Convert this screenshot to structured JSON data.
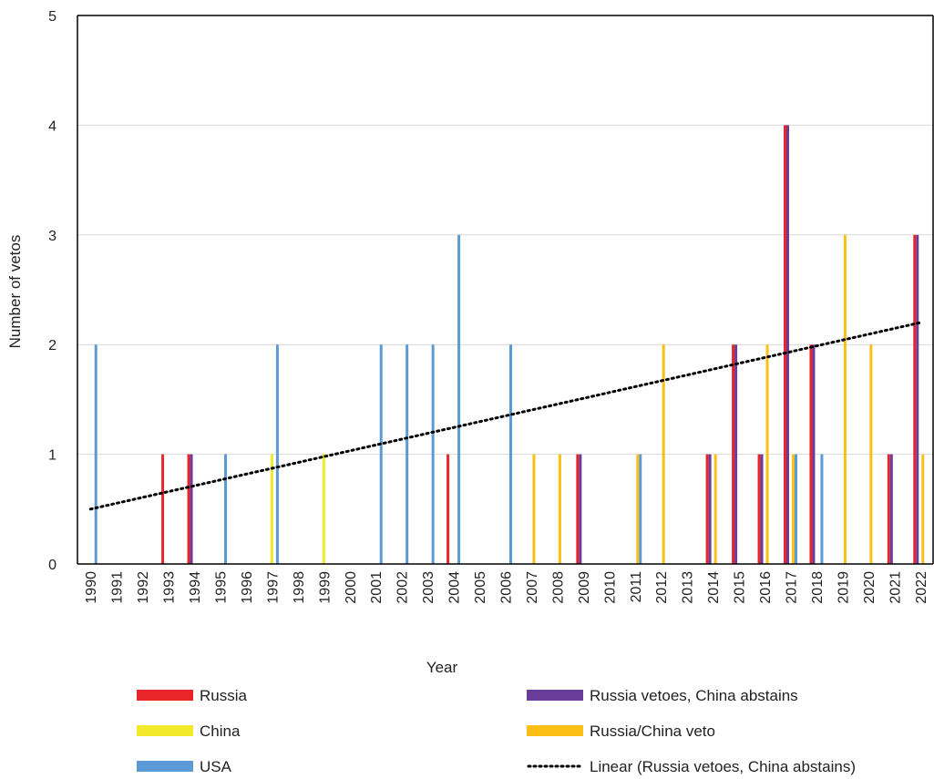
{
  "chart_data": {
    "type": "bar",
    "xlabel": "Year",
    "ylabel": "Number of vetos",
    "ylim": [
      0,
      5
    ],
    "yticks": [
      "0",
      "1",
      "2",
      "3",
      "4",
      "5"
    ],
    "grid": true,
    "categories": [
      "1990",
      "1991",
      "1992",
      "1993",
      "1994",
      "1995",
      "1996",
      "1997",
      "1998",
      "1999",
      "2000",
      "2001",
      "2002",
      "2003",
      "2004",
      "2005",
      "2006",
      "2007",
      "2008",
      "2009",
      "2010",
      "2011",
      "2012",
      "2013",
      "2014",
      "2015",
      "2016",
      "2017",
      "2018",
      "2019",
      "2020",
      "2021",
      "2022"
    ],
    "series": [
      {
        "name": "Russia",
        "color": "#e8262a",
        "values": [
          0,
          0,
          0,
          1,
          1,
          0,
          0,
          0,
          0,
          0,
          0,
          0,
          0,
          0,
          1,
          0,
          0,
          0,
          0,
          1,
          0,
          0,
          0,
          0,
          1,
          2,
          1,
          4,
          2,
          0,
          0,
          1,
          3
        ]
      },
      {
        "name": "Russia vetoes, China abstains",
        "color": "#6a3d9a",
        "values": [
          0,
          0,
          0,
          0,
          1,
          0,
          0,
          0,
          0,
          0,
          0,
          0,
          0,
          0,
          0,
          0,
          0,
          0,
          0,
          1,
          0,
          0,
          0,
          0,
          1,
          2,
          1,
          4,
          2,
          0,
          0,
          1,
          3
        ]
      },
      {
        "name": "China",
        "color": "#f2e92b",
        "values": [
          0,
          0,
          0,
          0,
          0,
          0,
          0,
          1,
          0,
          1,
          0,
          0,
          0,
          0,
          0,
          0,
          0,
          0,
          0,
          0,
          0,
          0,
          0,
          0,
          0,
          0,
          0,
          0,
          0,
          0,
          0,
          0,
          0
        ]
      },
      {
        "name": "Russia/China veto",
        "color": "#fcbf15",
        "values": [
          0,
          0,
          0,
          0,
          0,
          0,
          0,
          0,
          0,
          0,
          0,
          0,
          0,
          0,
          0,
          0,
          0,
          1,
          1,
          0,
          0,
          1,
          2,
          0,
          1,
          0,
          2,
          1,
          0,
          3,
          2,
          0,
          1
        ]
      },
      {
        "name": "USA",
        "color": "#5b9bd5",
        "values": [
          2,
          0,
          0,
          0,
          0,
          1,
          0,
          2,
          0,
          0,
          0,
          2,
          2,
          2,
          3,
          0,
          2,
          0,
          0,
          0,
          0,
          1,
          0,
          0,
          0,
          0,
          0,
          1,
          1,
          0,
          0,
          0,
          0
        ]
      }
    ],
    "trendline": {
      "name": "Linear (Russia vetoes, China abstains)",
      "start": 0.5,
      "end": 2.2,
      "style": "dotted",
      "color": "#000000"
    },
    "legend_position": "bottom"
  }
}
